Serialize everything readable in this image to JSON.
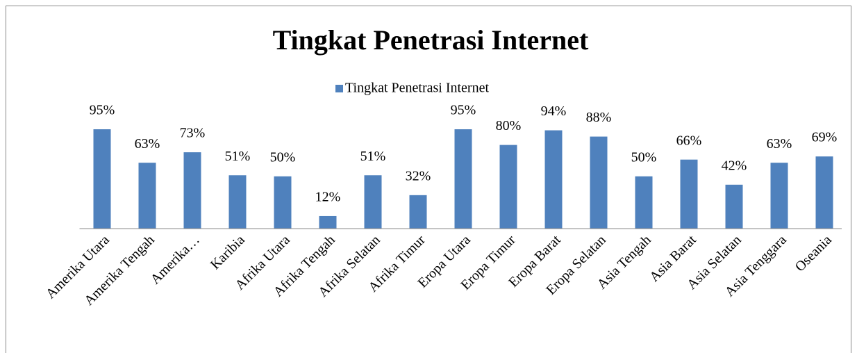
{
  "chart_data": {
    "type": "bar",
    "title": "Tingkat Penetrasi Internet",
    "categories": [
      "Amerika Utara",
      "Amerika Tengah",
      "Amerika…",
      "Karibia",
      "Afrika Utara",
      "Afrika Tengah",
      "Afrika Selatan",
      "Afrika Timur",
      "Eropa Utara",
      "Eropa Timur",
      "Eropa Barat",
      "Eropa Selatan",
      "Asia Tengah",
      "Asia Barat",
      "Asia Selatan",
      "Asia Tenggara",
      "Oseania"
    ],
    "series": [
      {
        "name": "Tingkat Penetrasi Internet",
        "color": "#4f81bd",
        "values": [
          95,
          63,
          73,
          51,
          50,
          12,
          51,
          32,
          95,
          80,
          94,
          88,
          50,
          66,
          42,
          63,
          69
        ],
        "value_labels": [
          "95%",
          "63%",
          "73%",
          "51%",
          "50%",
          "12%",
          "51%",
          "32%",
          "95%",
          "80%",
          "94%",
          "88%",
          "50%",
          "66%",
          "42%",
          "63%",
          "69%"
        ]
      }
    ],
    "legend": "top"
  }
}
